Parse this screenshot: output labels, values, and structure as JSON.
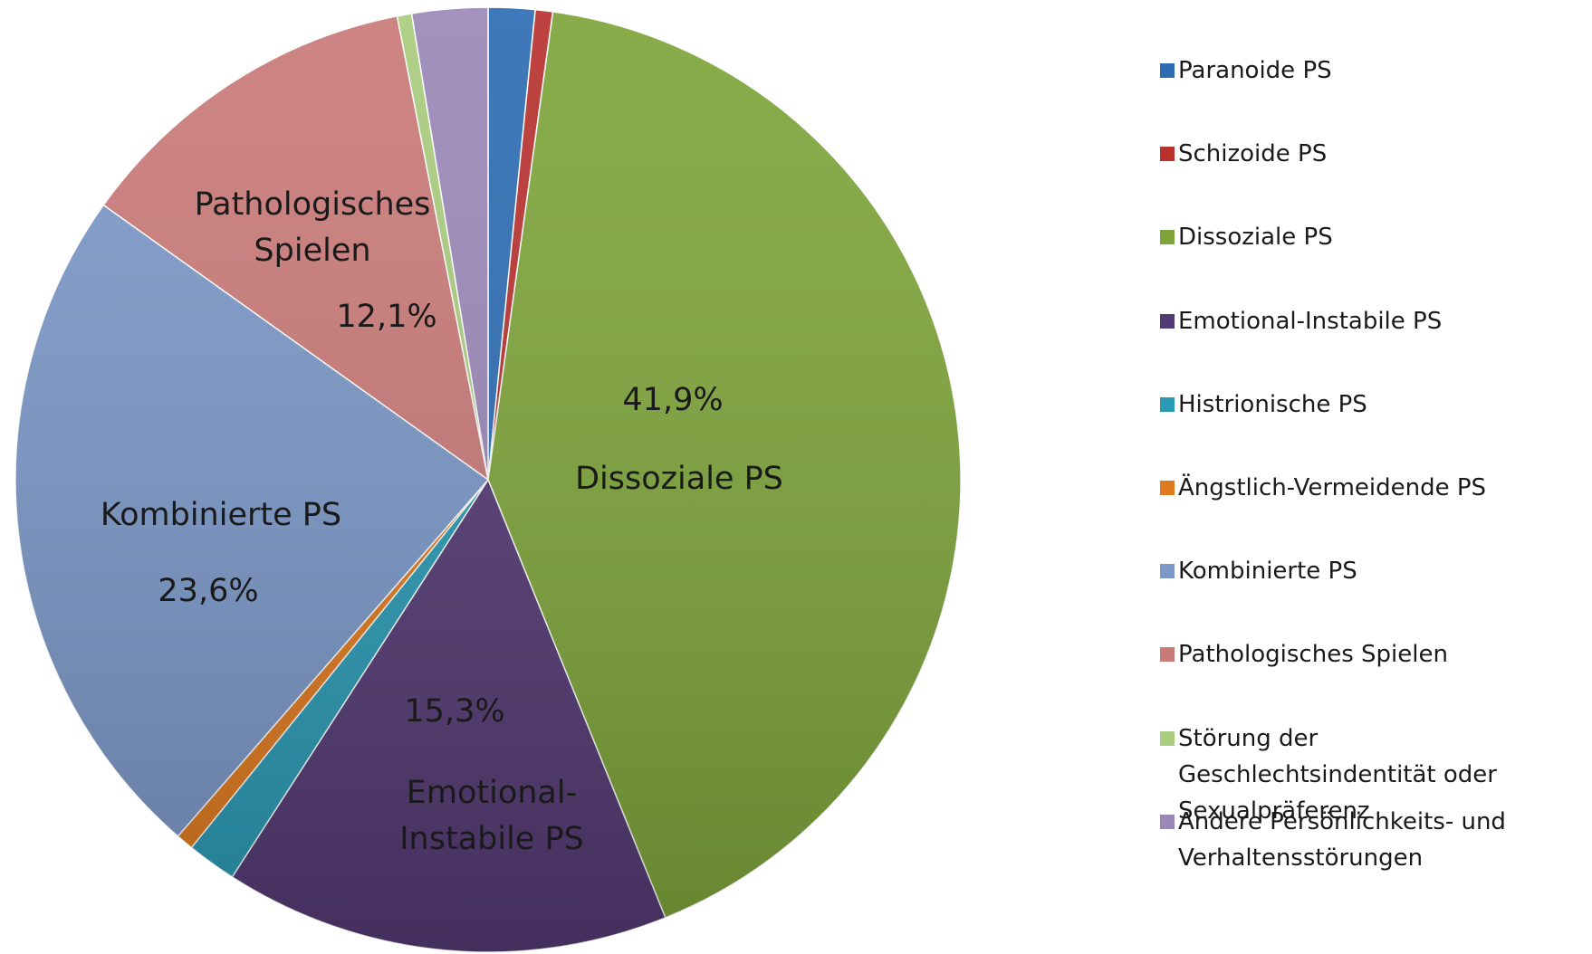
{
  "chart_data": {
    "type": "pie",
    "categories": [
      "Paranoide PS",
      "Schizoide PS",
      "Dissoziale PS",
      "Emotional-Instabile PS",
      "Histrionische PS",
      "Ängstlich-Vermeidende PS",
      "Kombinierte PS",
      "Pathologisches Spielen",
      "Störung der Geschlechtsindentität oder Sexualpräferenz",
      "Andere Persönlichkeits- und Verhaltensstörungen"
    ],
    "values": [
      1.6,
      0.6,
      41.9,
      15.3,
      1.7,
      0.6,
      23.6,
      12.1,
      0.5,
      2.6
    ],
    "value_labels": [
      null,
      null,
      "41,9%",
      "15,3%",
      null,
      null,
      "23,6%",
      "12,1%",
      null,
      null
    ],
    "colors": [
      "#2e6db4",
      "#b8312f",
      "#7ea53a",
      "#543a74",
      "#2a9ab5",
      "#e07a1f",
      "#7b98c8",
      "#c97a78",
      "#a9cc7e",
      "#9b88b8"
    ],
    "legend": "right"
  }
}
